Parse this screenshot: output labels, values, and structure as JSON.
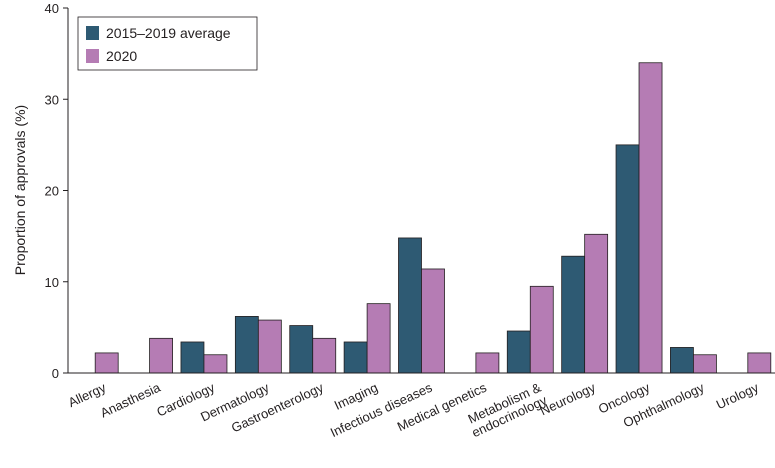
{
  "chart_data": {
    "type": "bar",
    "title": "",
    "xlabel": "",
    "ylabel": "Proportion of approvals (%)",
    "ylim": [
      0,
      40
    ],
    "yticks": [
      0,
      10,
      20,
      30,
      40
    ],
    "grid": false,
    "legend_position": "top-left",
    "categories": [
      "Allergy",
      "Anasthesia",
      "Cardiology",
      "Dermatology",
      "Gastroenterology",
      "Imaging",
      "Infectious diseases",
      "Medical genetics",
      "Metabolism & endocrinology",
      "Neurology",
      "Oncology",
      "Ophthalmology",
      "Urology"
    ],
    "category_lines": [
      [
        "Allergy"
      ],
      [
        "Anasthesia"
      ],
      [
        "Cardiology"
      ],
      [
        "Dermatology"
      ],
      [
        "Gastroenterology"
      ],
      [
        "Imaging"
      ],
      [
        "Infectious diseases"
      ],
      [
        "Medical genetics"
      ],
      [
        "Metabolism &",
        "endocrinology"
      ],
      [
        "Neurology"
      ],
      [
        "Oncology"
      ],
      [
        "Ophthalmology"
      ],
      [
        "Urology"
      ]
    ],
    "series": [
      {
        "name": "2015–2019 average",
        "color": "#2e5a73",
        "values": [
          0,
          0,
          3.4,
          6.2,
          5.2,
          3.4,
          14.8,
          0,
          4.6,
          12.8,
          25.0,
          2.8,
          0
        ]
      },
      {
        "name": "2020",
        "color": "#b57cb4",
        "values": [
          2.2,
          3.8,
          2.0,
          5.8,
          3.8,
          7.6,
          11.4,
          2.2,
          9.5,
          15.2,
          34.0,
          2.0,
          2.2
        ]
      }
    ]
  }
}
